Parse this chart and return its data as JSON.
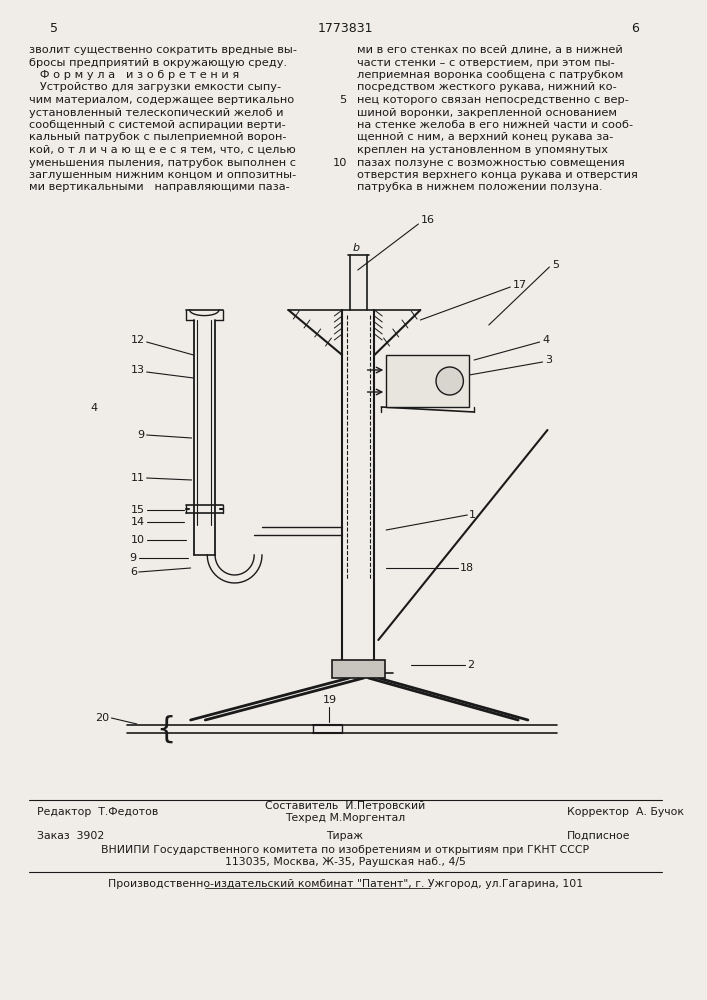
{
  "page_number_left": "5",
  "patent_number": "1773831",
  "page_number_right": "6",
  "background_color": "#f0ede8",
  "text_color": "#1a1a1a",
  "font_size_body": 8.2,
  "font_size_header": 9.0,
  "font_size_footer": 7.8,
  "footer_editor": "Редактор  Т.Федотов",
  "footer_composer": "Составитель  И.Петровский",
  "footer_techred": "Техред М.Моргентал",
  "footer_corrector": "Корректор  А. Бучок",
  "footer_order": "Заказ  3902",
  "footer_tirazh": "Тираж",
  "footer_podpisnoe": "Подписное",
  "footer_vniip": "ВНИИПИ Государственного комитета по изобретениям и открытиям при ГКНТ СССР",
  "footer_address": "113035, Москва, Ж-35, Раушская наб., 4/5",
  "footer_publisher": "Производственно-издательский комбинат \"Патент\", г. Ужгород, ул.Гагарина, 101"
}
